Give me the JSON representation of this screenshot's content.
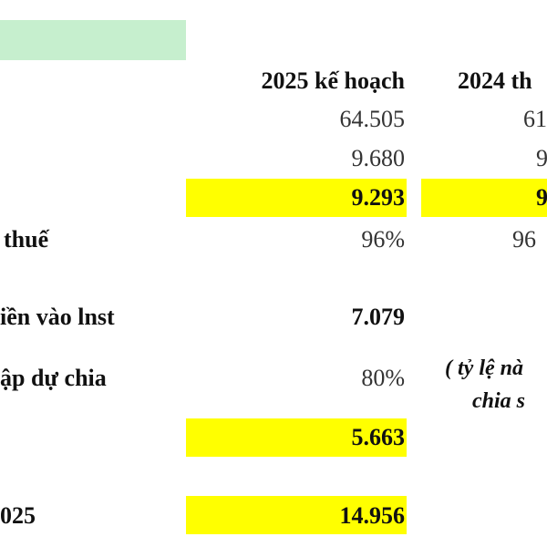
{
  "headers": {
    "plan_2025": "2025 kế hoạch",
    "actual_2024": "2024 th"
  },
  "rows": {
    "revenue": {
      "plan": "64.505",
      "prev": "61"
    },
    "cost": {
      "plan": "9.680",
      "prev": "9"
    },
    "profit": {
      "plan": "9.293",
      "prev": "9"
    },
    "tax_ratio": {
      "label": "thuế",
      "plan": "96%",
      "prev": "96"
    },
    "cash_to_lnst": {
      "label": "iền vào lnst",
      "plan": "7.079"
    },
    "dividend_ratio": {
      "label": "ập dự chia",
      "plan": "80%"
    },
    "dividend_value": {
      "plan": "5.663"
    },
    "total_2025": {
      "label": "025",
      "plan": "14.956"
    }
  },
  "note": {
    "line1": "( tỷ lệ nà",
    "line2": "chia s"
  },
  "colors": {
    "highlight": "#ffff00",
    "header_fill": "#c6efce"
  }
}
